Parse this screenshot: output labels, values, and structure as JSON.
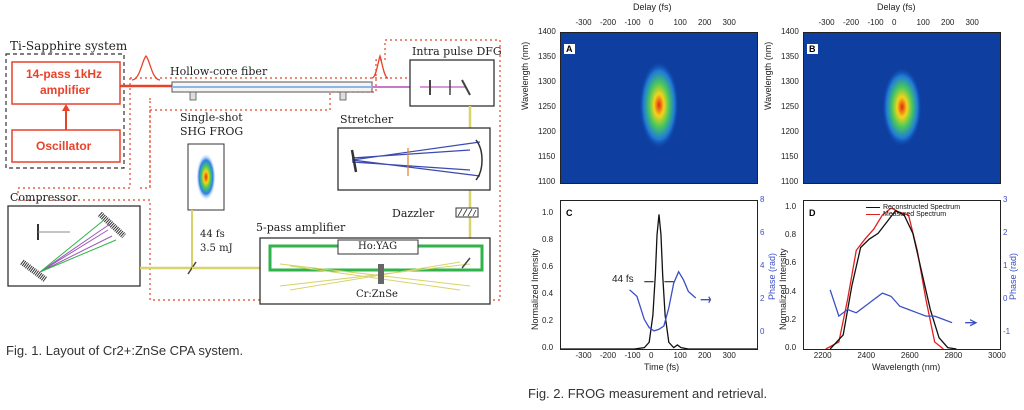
{
  "fig1": {
    "caption": "Fig. 1. Layout of Cr2+:ZnSe CPA system.",
    "ti_sapphire": "Ti-Sapphire system",
    "amplifier": [
      "14-pass 1kHz",
      "amplifier"
    ],
    "oscillator": "Oscillator",
    "hollow_core": "Hollow-core fiber",
    "intra_pulse": "Intra pulse DFG",
    "stretcher": "Stretcher",
    "frog": [
      "Single-shot",
      "SHG FROG"
    ],
    "compressor": "Compressor",
    "dazzler": "Dazzler",
    "five_pass": "5-pass amplifier",
    "ho_yag": "Ho:YAG",
    "cr_znse": "Cr:ZnSe",
    "pulse": [
      "44 fs",
      "3.5 mJ"
    ],
    "colors": {
      "red": "#e8422a",
      "green": "#2fb34a",
      "yellow": "#d8d36a",
      "blue": "#2c3a9a"
    }
  },
  "fig2": {
    "caption": "Fig. 2. FROG measurement and retrieval.",
    "panel_labels": [
      "A",
      "B",
      "C",
      "D"
    ],
    "delay_label": "Delay (fs)",
    "delay_ticks": [
      "-300",
      "-200",
      "-100",
      "0",
      "100",
      "200",
      "300"
    ],
    "wavelength_nm_label": "Wavelength (nm)",
    "wl_ticks": [
      "1400",
      "1350",
      "1300",
      "1250",
      "1200",
      "1150",
      "1100"
    ],
    "time_label": "Time (fs)",
    "time_ticks": [
      "-300",
      "-200",
      "-100",
      "0",
      "100",
      "200",
      "300"
    ],
    "norm_int_label": "Normalized Intensity",
    "c_y_ticks": [
      "1.0",
      "0.8",
      "0.6",
      "0.4",
      "0.2",
      "0.0"
    ],
    "phase_label": "Phase (rad)",
    "c_phase_ticks": [
      "8",
      "6",
      "4",
      "2",
      "0"
    ],
    "fwhm": "44 fs",
    "d_x_label": "Wavelength (nm)",
    "d_x_ticks": [
      "2200",
      "2400",
      "2600",
      "2800",
      "3000"
    ],
    "d_phase_ticks": [
      "3",
      "2",
      "1",
      "0",
      "-1"
    ],
    "legend": [
      "Reconstructed Spectrum",
      "Measured Spectrum"
    ],
    "colors": {
      "frog_bg": "#0d3ea0",
      "phase": "#3b4fc4",
      "measured": "#e02020",
      "reconstructed": "#111111"
    }
  },
  "chart_data": [
    {
      "type": "heatmap",
      "panel": "A",
      "xlabel": "Delay (fs)",
      "ylabel": "Wavelength (nm)",
      "xlim": [
        -400,
        400
      ],
      "ylim": [
        1100,
        1400
      ],
      "peak": {
        "delay_fs": 0,
        "wavelength_nm": 1260
      }
    },
    {
      "type": "heatmap",
      "panel": "B",
      "xlabel": "Delay (fs)",
      "ylabel": "Wavelength (nm)",
      "xlim": [
        -400,
        400
      ],
      "ylim": [
        1100,
        1400
      ],
      "peak": {
        "delay_fs": 0,
        "wavelength_nm": 1255
      }
    },
    {
      "type": "line",
      "panel": "C",
      "xlabel": "Time (fs)",
      "ylabel": "Normalized Intensity",
      "y2label": "Phase (rad)",
      "xlim": [
        -400,
        400
      ],
      "ylim": [
        0,
        1.1
      ],
      "y2lim": [
        -1,
        8
      ],
      "series": [
        {
          "axis": "y",
          "x": [
            -400,
            -100,
            -60,
            -40,
            -25,
            -15,
            -8,
            0,
            8,
            15,
            25,
            40,
            60,
            75,
            90,
            120,
            400
          ],
          "y": [
            0,
            0,
            0.01,
            0.05,
            0.25,
            0.55,
            0.85,
            1.0,
            0.85,
            0.55,
            0.25,
            0.05,
            0.01,
            0.03,
            0.01,
            0,
            0
          ]
        },
        {
          "axis": "y2",
          "x": [
            -120,
            -90,
            -60,
            -40,
            -20,
            0,
            20,
            40,
            60,
            80,
            100,
            120,
            150
          ],
          "y": [
            2.6,
            2.2,
            0.8,
            0.3,
            0.1,
            0.2,
            0.4,
            1.5,
            3.0,
            3.7,
            3.2,
            2.5,
            2.1
          ]
        }
      ]
    },
    {
      "type": "line",
      "panel": "D",
      "xlabel": "Wavelength (nm)",
      "ylabel": "Normalized Intensity",
      "y2label": "Phase (rad)",
      "xlim": [
        2100,
        3000
      ],
      "ylim": [
        0,
        1.05
      ],
      "y2lim": [
        -1.5,
        3
      ],
      "series": [
        {
          "name": "Reconstructed Spectrum",
          "axis": "y",
          "x": [
            2220,
            2280,
            2320,
            2360,
            2400,
            2440,
            2480,
            2520,
            2560,
            2600,
            2640,
            2680,
            2720,
            2760,
            2800
          ],
          "y": [
            0,
            0.1,
            0.45,
            0.72,
            0.78,
            0.82,
            0.9,
            0.98,
            0.95,
            0.82,
            0.55,
            0.28,
            0.08,
            0.01,
            0
          ]
        },
        {
          "name": "Measured Spectrum",
          "axis": "y",
          "x": [
            2200,
            2260,
            2300,
            2340,
            2380,
            2420,
            2460,
            2500,
            2540,
            2580,
            2620,
            2660,
            2700,
            2740
          ],
          "y": [
            0,
            0.05,
            0.35,
            0.7,
            0.78,
            0.85,
            0.95,
            1.0,
            0.97,
            0.95,
            0.7,
            0.35,
            0.05,
            0
          ]
        },
        {
          "axis": "y2",
          "x": [
            2220,
            2260,
            2300,
            2340,
            2380,
            2420,
            2460,
            2500,
            2540,
            2580,
            2620,
            2660,
            2700,
            2740,
            2780
          ],
          "y": [
            0.3,
            -0.5,
            -0.3,
            -0.4,
            -0.2,
            0.0,
            0.2,
            0.1,
            -0.2,
            -0.3,
            -0.4,
            -0.5,
            -0.5,
            -0.6,
            -0.7
          ]
        }
      ]
    }
  ]
}
